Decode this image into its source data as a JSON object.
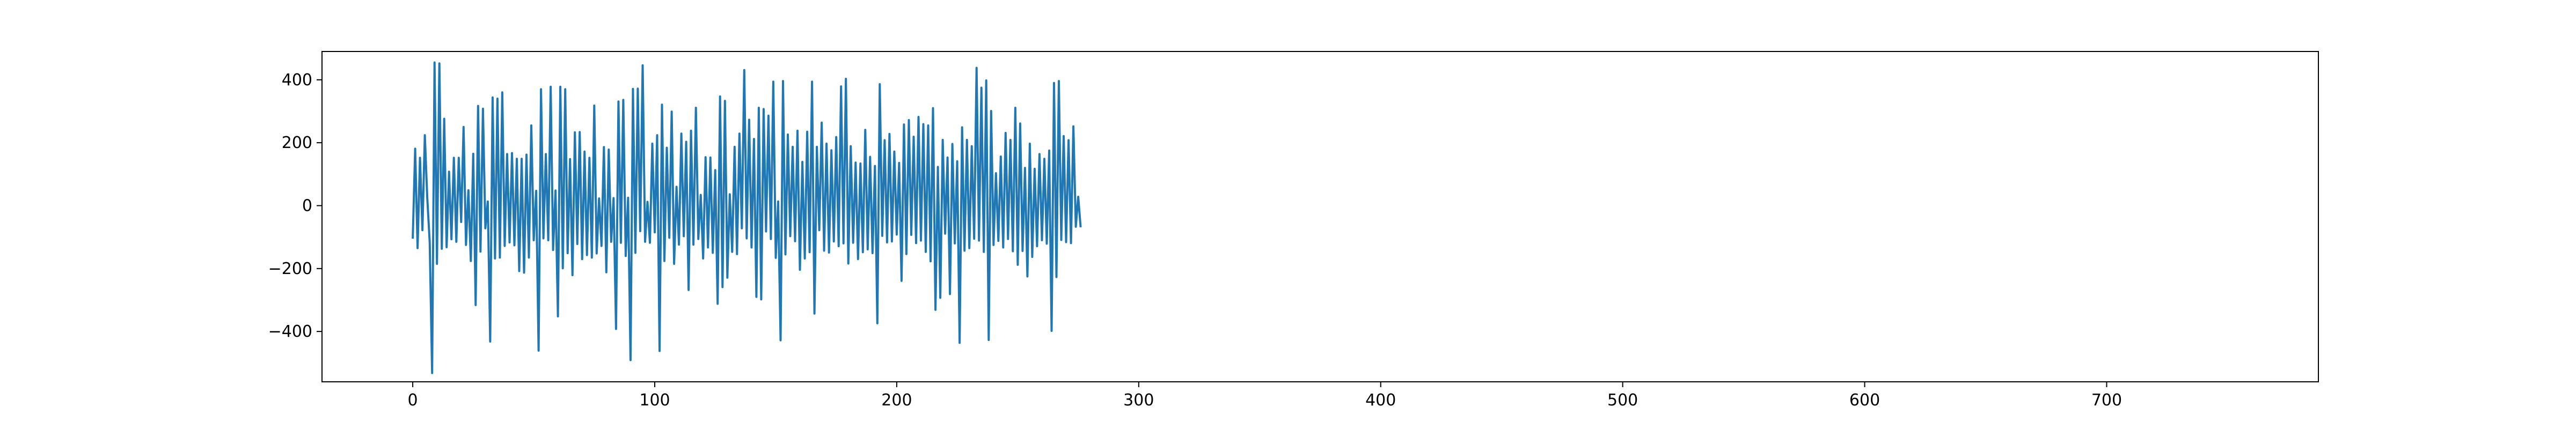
{
  "chart_data": {
    "type": "line",
    "title": "",
    "xlabel": "",
    "ylabel": "",
    "xlim": [
      -37.5,
      787.5
    ],
    "ylim": [
      -560,
      490
    ],
    "x_ticks": [
      0,
      100,
      200,
      300,
      400,
      500,
      600,
      700
    ],
    "y_ticks": [
      -400,
      -200,
      0,
      200,
      400
    ],
    "x_tick_labels": [
      "0",
      "100",
      "200",
      "300",
      "400",
      "500",
      "600",
      "700"
    ],
    "y_tick_labels": [
      "−400",
      "−200",
      "0",
      "200",
      "400"
    ],
    "grid": false,
    "legend": "none",
    "line_color": "#1f77b4",
    "series": [
      {
        "x_start": 0,
        "x_step": 1,
        "values": [
          -105,
          181,
          -135,
          152,
          -78,
          224,
          26,
          -116,
          -532,
          455,
          -185,
          452,
          -137,
          276,
          -132,
          108,
          -107,
          152,
          -115,
          152,
          -52,
          250,
          -125,
          49,
          -176,
          165,
          -316,
          317,
          -146,
          308,
          -72,
          13,
          -432,
          344,
          -168,
          340,
          -165,
          360,
          -128,
          164,
          -117,
          167,
          -126,
          149,
          -208,
          149,
          -213,
          162,
          -165,
          255,
          -110,
          47,
          -461,
          370,
          -104,
          164,
          -110,
          378,
          -141,
          48,
          -352,
          378,
          -199,
          370,
          -151,
          148,
          -221,
          233,
          -122,
          234,
          -170,
          172,
          -157,
          152,
          -165,
          318,
          -152,
          23,
          -128,
          186,
          -212,
          178,
          -115,
          24,
          -392,
          331,
          -118,
          336,
          -160,
          25,
          -491,
          371,
          -150,
          372,
          -81,
          446,
          -115,
          12,
          -118,
          197,
          -85,
          224,
          -462,
          321,
          -176,
          184,
          -102,
          299,
          -185,
          60,
          -124,
          229,
          -97,
          203,
          -268,
          238,
          -124,
          311,
          -106,
          34,
          -168,
          154,
          -133,
          153,
          -150,
          113,
          -312,
          347,
          -259,
          333,
          -229,
          36,
          -147,
          187,
          -154,
          229,
          -72,
          431,
          -104,
          273,
          -133,
          212,
          -290,
          311,
          -298,
          307,
          -82,
          286,
          -106,
          394,
          -166,
          13,
          -428,
          396,
          -155,
          226,
          -97,
          187,
          -113,
          238,
          -204,
          139,
          -168,
          235,
          -148,
          394,
          -343,
          187,
          -78,
          264,
          -143,
          197,
          -149,
          176,
          -114,
          218,
          -129,
          379,
          -120,
          403,
          -184,
          189,
          -118,
          137,
          -170,
          134,
          -148,
          241,
          -139,
          155,
          -151,
          126,
          -374,
          386,
          -96,
          208,
          -117,
          228,
          -114,
          172,
          -92,
          136,
          -239,
          258,
          -154,
          272,
          -93,
          219,
          -119,
          282,
          -111,
          259,
          -147,
          255,
          -177,
          310,
          -331,
          123,
          -293,
          209,
          -89,
          153,
          -281,
          196,
          -120,
          141,
          -436,
          249,
          -143,
          209,
          -135,
          189,
          -105,
          438,
          -111,
          375,
          -147,
          398,
          -427,
          301,
          -125,
          103,
          -112,
          156,
          -133,
          231,
          -106,
          209,
          -145,
          311,
          -188,
          261,
          -144,
          120,
          -225,
          197,
          -163,
          117,
          -129,
          164,
          -110,
          149,
          -121,
          175,
          -398,
          390,
          -227,
          396,
          -109,
          221,
          -116,
          208,
          -119,
          252,
          -67,
          28,
          -69
        ]
      }
    ]
  }
}
